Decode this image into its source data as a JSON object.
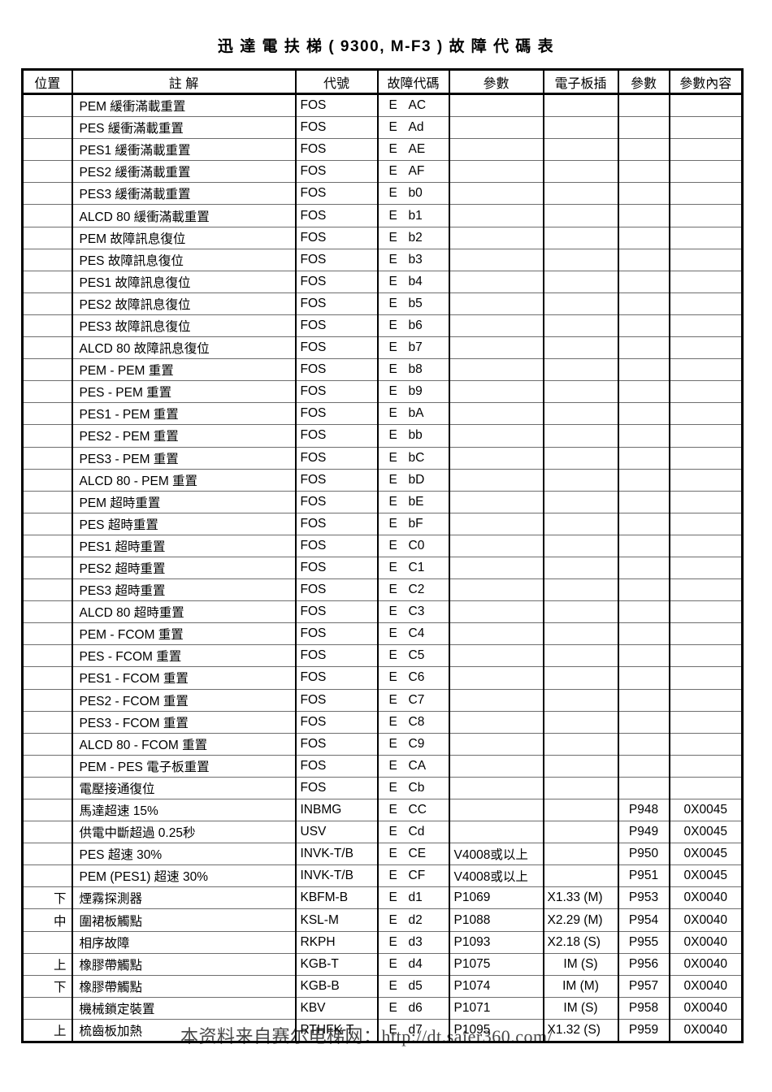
{
  "page_title": "迅 達 電 扶 梯 ( 9300, M-F3 ) 故 障 代 碼 表",
  "watermark": "本资料来自赛尔电梯网：http://dt.saier360.com/",
  "colors": {
    "page_background": "#ffffff",
    "text": "#000000",
    "grid_major": "#000000",
    "grid_minor": "#6e6e6e",
    "watermark": "#474747"
  },
  "table": {
    "headers": [
      "位置",
      "註 解",
      "代號",
      "故障代碼",
      "參數",
      "電子板插",
      "參數",
      "參數內容"
    ],
    "fault_letter": "E",
    "rows": [
      [
        "",
        "PEM 緩衝滿載重置",
        "FOS",
        "AC",
        "",
        "",
        "",
        ""
      ],
      [
        "",
        "PES 緩衝滿載重置",
        "FOS",
        "Ad",
        "",
        "",
        "",
        ""
      ],
      [
        "",
        "PES1 緩衝滿載重置",
        "FOS",
        "AE",
        "",
        "",
        "",
        ""
      ],
      [
        "",
        "PES2 緩衝滿載重置",
        "FOS",
        "AF",
        "",
        "",
        "",
        ""
      ],
      [
        "",
        "PES3 緩衝滿載重置",
        "FOS",
        "b0",
        "",
        "",
        "",
        ""
      ],
      [
        "",
        "ALCD 80 緩衝滿載重置",
        "FOS",
        "b1",
        "",
        "",
        "",
        ""
      ],
      [
        "",
        "PEM 故障訊息復位",
        "FOS",
        "b2",
        "",
        "",
        "",
        ""
      ],
      [
        "",
        "PES 故障訊息復位",
        "FOS",
        "b3",
        "",
        "",
        "",
        ""
      ],
      [
        "",
        "PES1 故障訊息復位",
        "FOS",
        "b4",
        "",
        "",
        "",
        ""
      ],
      [
        "",
        "PES2 故障訊息復位",
        "FOS",
        "b5",
        "",
        "",
        "",
        ""
      ],
      [
        "",
        "PES3 故障訊息復位",
        "FOS",
        "b6",
        "",
        "",
        "",
        ""
      ],
      [
        "",
        "ALCD 80 故障訊息復位",
        "FOS",
        "b7",
        "",
        "",
        "",
        ""
      ],
      [
        "",
        "PEM - PEM 重置",
        "FOS",
        "b8",
        "",
        "",
        "",
        ""
      ],
      [
        "",
        "PES - PEM 重置",
        "FOS",
        "b9",
        "",
        "",
        "",
        ""
      ],
      [
        "",
        "PES1 - PEM 重置",
        "FOS",
        "bA",
        "",
        "",
        "",
        ""
      ],
      [
        "",
        "PES2 - PEM 重置",
        "FOS",
        "bb",
        "",
        "",
        "",
        ""
      ],
      [
        "",
        "PES3 - PEM 重置",
        "FOS",
        "bC",
        "",
        "",
        "",
        ""
      ],
      [
        "",
        "ALCD 80 - PEM 重置",
        "FOS",
        "bD",
        "",
        "",
        "",
        ""
      ],
      [
        "",
        "PEM 超時重置",
        "FOS",
        "bE",
        "",
        "",
        "",
        ""
      ],
      [
        "",
        "PES 超時重置",
        "FOS",
        "bF",
        "",
        "",
        "",
        ""
      ],
      [
        "",
        "PES1 超時重置",
        "FOS",
        "C0",
        "",
        "",
        "",
        ""
      ],
      [
        "",
        "PES2 超時重置",
        "FOS",
        "C1",
        "",
        "",
        "",
        ""
      ],
      [
        "",
        "PES3 超時重置",
        "FOS",
        "C2",
        "",
        "",
        "",
        ""
      ],
      [
        "",
        "ALCD 80 超時重置",
        "FOS",
        "C3",
        "",
        "",
        "",
        ""
      ],
      [
        "",
        "PEM - FCOM 重置",
        "FOS",
        "C4",
        "",
        "",
        "",
        ""
      ],
      [
        "",
        "PES - FCOM 重置",
        "FOS",
        "C5",
        "",
        "",
        "",
        ""
      ],
      [
        "",
        "PES1 - FCOM 重置",
        "FOS",
        "C6",
        "",
        "",
        "",
        ""
      ],
      [
        "",
        "PES2 - FCOM 重置",
        "FOS",
        "C7",
        "",
        "",
        "",
        ""
      ],
      [
        "",
        "PES3 - FCOM 重置",
        "FOS",
        "C8",
        "",
        "",
        "",
        ""
      ],
      [
        "",
        "ALCD 80 - FCOM 重置",
        "FOS",
        "C9",
        "",
        "",
        "",
        ""
      ],
      [
        "",
        "PEM - PES 電子板重置",
        "FOS",
        "CA",
        "",
        "",
        "",
        ""
      ],
      [
        "",
        "電壓接通復位",
        "FOS",
        "Cb",
        "",
        "",
        "",
        ""
      ],
      [
        "",
        "馬達超速 15%",
        "INBMG",
        "CC",
        "",
        "",
        "P948",
        "0X0045"
      ],
      [
        "",
        "供電中斷超過 0.25秒",
        "USV",
        "Cd",
        "",
        "",
        "P949",
        "0X0045"
      ],
      [
        "",
        "PES 超速 30%",
        "INVK-T/B",
        "CE",
        "V4008或以上",
        "",
        "P950",
        "0X0045"
      ],
      [
        "",
        "PEM (PES1) 超速 30%",
        "INVK-T/B",
        "CF",
        "V4008或以上",
        "",
        "P951",
        "0X0045"
      ],
      [
        "下",
        "煙霧探測器",
        "KBFM-B",
        "d1",
        "P1069",
        "X1.33 (M)",
        "P953",
        "0X0040"
      ],
      [
        "中",
        "圍裙板觸點",
        "KSL-M",
        "d2",
        "P1088",
        "X2.29 (M)",
        "P954",
        "0X0040"
      ],
      [
        "",
        "相序故障",
        "RKPH",
        "d3",
        "P1093",
        "X2.18 (S)",
        "P955",
        "0X0040"
      ],
      [
        "上",
        "橡膠帶觸點",
        "KGB-T",
        "d4",
        "P1075",
        "IM (S)",
        "P956",
        "0X0040"
      ],
      [
        "下",
        "橡膠帶觸點",
        "KGB-B",
        "d5",
        "P1074",
        "IM (M)",
        "P957",
        "0X0040"
      ],
      [
        "",
        "機械鎖定裝置",
        "KBV",
        "d6",
        "P1071",
        "IM (S)",
        "P958",
        "0X0040"
      ],
      [
        "上",
        "梳齒板加熱",
        "RTHFK-T",
        "d7",
        "P1095",
        "X1.32 (S)",
        "P959",
        "0X0040"
      ]
    ]
  }
}
